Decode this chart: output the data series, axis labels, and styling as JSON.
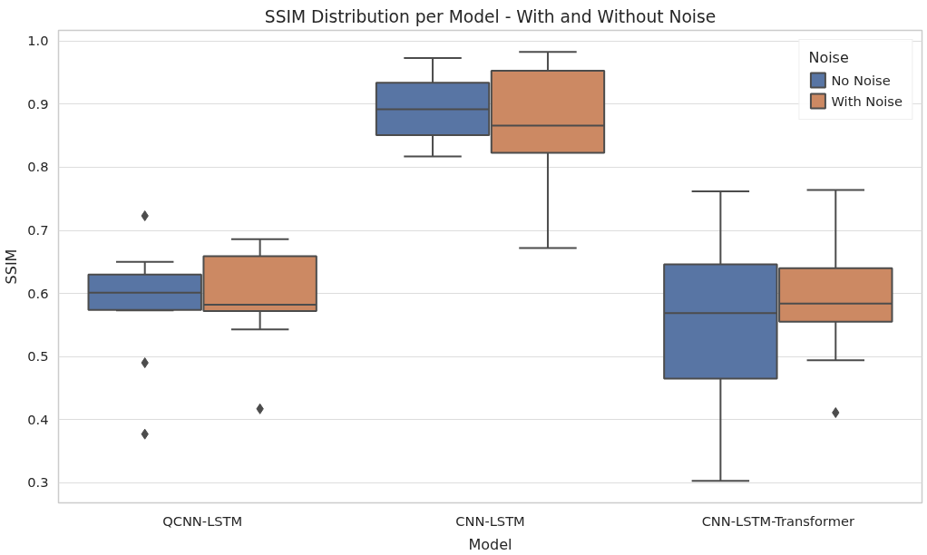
{
  "chart_data": {
    "type": "box",
    "title": "SSIM Distribution per Model - With and Without Noise",
    "xlabel": "Model",
    "ylabel": "SSIM",
    "legend_title": "Noise",
    "categories": [
      "QCNN-LSTM",
      "CNN-LSTM",
      "CNN-LSTM-Transformer"
    ],
    "ylim": [
      0.268,
      1.017
    ],
    "yticks": [
      {
        "value": 0.3,
        "label": "0.3"
      },
      {
        "value": 0.4,
        "label": "0.4"
      },
      {
        "value": 0.5,
        "label": "0.5"
      },
      {
        "value": 0.6,
        "label": "0.6"
      },
      {
        "value": 0.7,
        "label": "0.7"
      },
      {
        "value": 0.8,
        "label": "0.8"
      },
      {
        "value": 0.9,
        "label": "0.9"
      },
      {
        "value": 1.0,
        "label": "1.0"
      }
    ],
    "grid": "y",
    "legend": "top right",
    "marker": "diamond",
    "series": [
      {
        "name": "No Noise",
        "color": "#5875a4",
        "boxes": [
          {
            "low": 0.573,
            "q1": 0.574,
            "median": 0.601,
            "q3": 0.63,
            "high": 0.65,
            "outliers": [
              0.723,
              0.49,
              0.377
            ]
          },
          {
            "low": 0.817,
            "q1": 0.851,
            "median": 0.892,
            "q3": 0.934,
            "high": 0.973
          },
          {
            "low": 0.303,
            "q1": 0.465,
            "median": 0.569,
            "q3": 0.646,
            "high": 0.762
          }
        ]
      },
      {
        "name": "With Noise",
        "color": "#cc8963",
        "boxes": [
          {
            "low": 0.543,
            "q1": 0.572,
            "median": 0.582,
            "q3": 0.659,
            "high": 0.686,
            "outliers": [
              0.417
            ]
          },
          {
            "low": 0.672,
            "q1": 0.823,
            "median": 0.866,
            "q3": 0.953,
            "high": 0.983
          },
          {
            "low": 0.494,
            "q1": 0.555,
            "median": 0.584,
            "q3": 0.64,
            "high": 0.764,
            "outliers": [
              0.411
            ]
          }
        ]
      }
    ]
  }
}
